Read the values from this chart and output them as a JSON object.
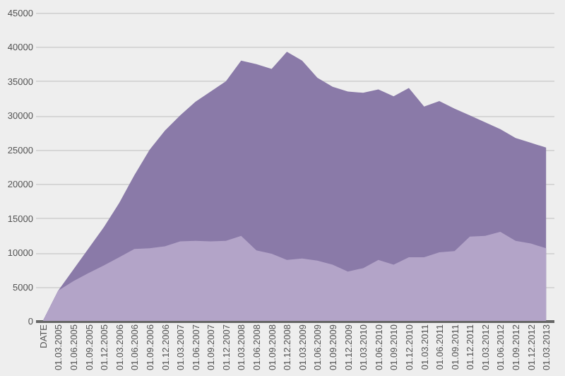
{
  "chart_data": {
    "type": "area",
    "categories": [
      "DATE",
      "01.03.2005",
      "01.06.2005",
      "01.09.2005",
      "01.12.2005",
      "01.03.2006",
      "01.06.2006",
      "01.09.2006",
      "01.12.2006",
      "01.03.2007",
      "01.06.2007",
      "01.09.2007",
      "01.12.2007",
      "01.03.2008",
      "01.06.2008",
      "01.09.2008",
      "01.12.2008",
      "01.03.2009",
      "01.06.2009",
      "01.09.2009",
      "01.12.2009",
      "01.03.2010",
      "01.06.2010",
      "01.09.2010",
      "01.12.2010",
      "01.03.2011",
      "01.06.2011",
      "01.09.2011",
      "01.12.2011",
      "01.03.2012",
      "01.06.2012",
      "01.09.2012",
      "01.12.2012",
      "01.03.2013"
    ],
    "series": [
      {
        "color": "#8a7aa8",
        "values": [
          0,
          4400,
          7500,
          10600,
          13700,
          17200,
          21300,
          25000,
          27800,
          30000,
          32000,
          33500,
          35000,
          38000,
          37500,
          36800,
          39300,
          38000,
          35500,
          34200,
          33500,
          33300,
          33800,
          32800,
          34000,
          31300,
          32100,
          31000,
          30000,
          29000,
          28000,
          26700,
          26000,
          25300
        ]
      },
      {
        "color": "#b3a4c8",
        "values": [
          0,
          4400,
          5800,
          7000,
          8100,
          9300,
          10500,
          10600,
          10900,
          11600,
          11700,
          11600,
          11700,
          12400,
          10300,
          9800,
          8900,
          9100,
          8800,
          8200,
          7200,
          7700,
          8900,
          8200,
          9300,
          9300,
          10000,
          10200,
          12300,
          12400,
          13000,
          11700,
          11300,
          10600
        ]
      }
    ],
    "ylim": [
      0,
      45000
    ],
    "yticks": [
      0,
      5000,
      10000,
      15000,
      20000,
      25000,
      30000,
      35000,
      40000,
      45000
    ],
    "grid": "y"
  }
}
